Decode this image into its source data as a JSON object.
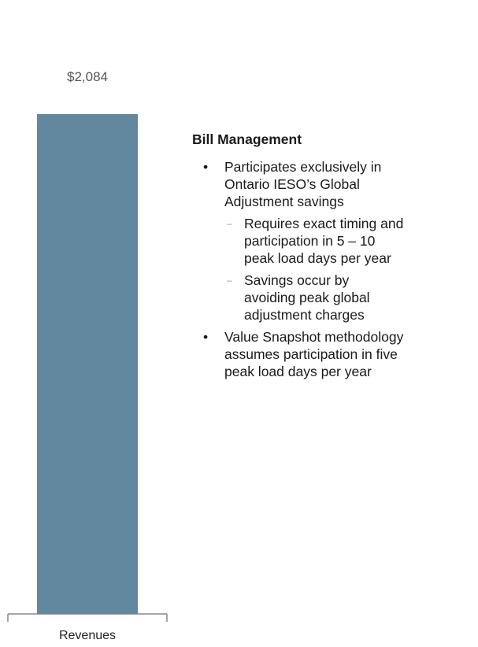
{
  "chart_data": {
    "type": "bar",
    "categories": [
      "Revenues"
    ],
    "values": [
      2084
    ],
    "value_labels": [
      "$2,084"
    ],
    "color": "#62889f"
  },
  "panel": {
    "title": "Bill Management",
    "bullets": [
      {
        "lines": [
          "Participates exclusively in",
          "Ontario IESO’s Global",
          "Adjustment savings"
        ],
        "sub": [
          {
            "lines": [
              "Requires exact timing and",
              "participation in 5 – 10",
              "peak load days per year"
            ]
          },
          {
            "lines": [
              "Savings occur by",
              "avoiding peak global",
              "adjustment charges"
            ]
          }
        ]
      },
      {
        "lines": [
          "Value Snapshot methodology",
          "assumes participation in five",
          "peak load days per year"
        ],
        "sub": []
      }
    ]
  }
}
